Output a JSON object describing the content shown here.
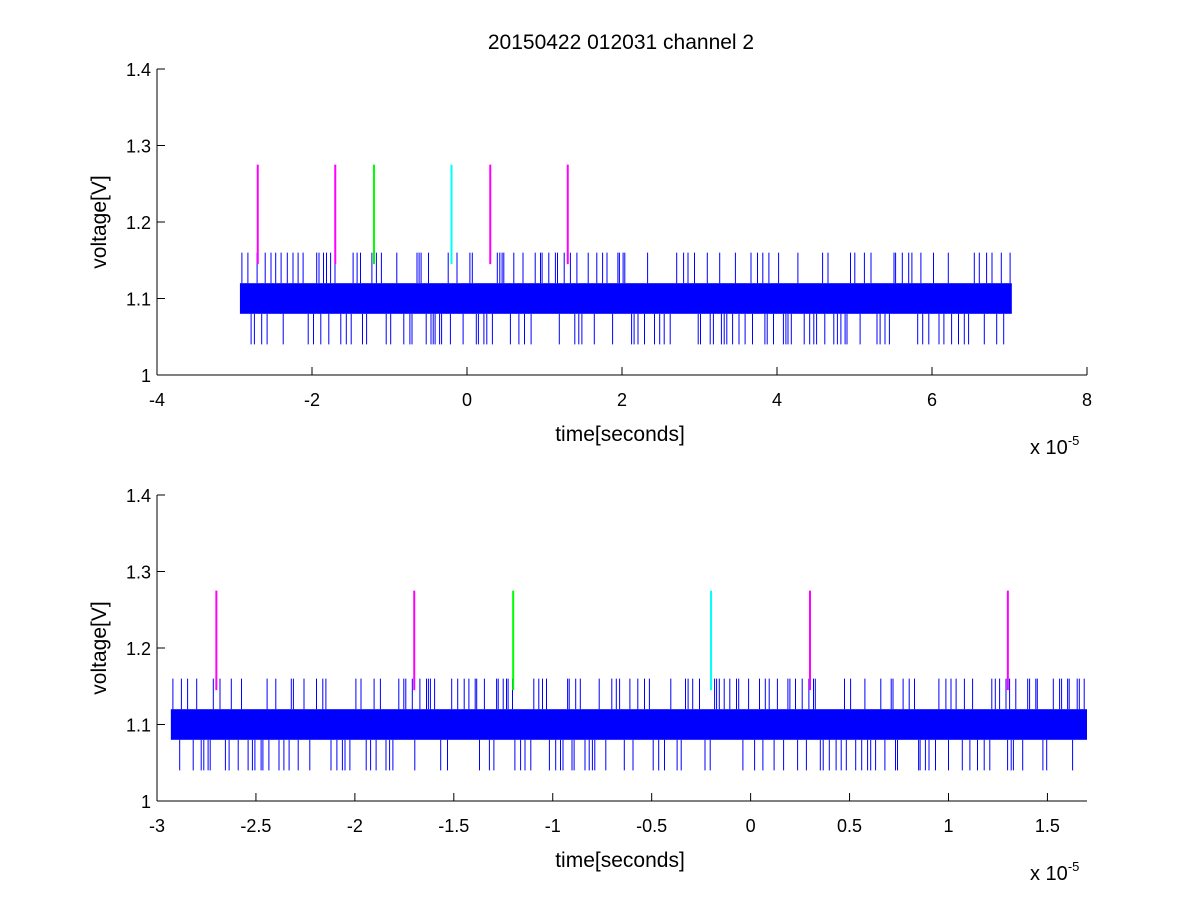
{
  "figure": {
    "title": "20150422 012031 channel 2"
  },
  "chart_data": [
    {
      "type": "line",
      "title": "20150422 012031 channel 2",
      "xlabel": "time[seconds]",
      "ylabel": "voltage[V]",
      "x_exponent_label": "x 10",
      "x_exponent_power": "-5",
      "x_scale": 1e-05,
      "xlim": [
        -4,
        8
      ],
      "ylim": [
        1.0,
        1.4
      ],
      "xticks": [
        -4,
        -2,
        0,
        2,
        4,
        6,
        8
      ],
      "xtick_labels": [
        "-4",
        "-2",
        "0",
        "2",
        "4",
        "6",
        "8"
      ],
      "yticks": [
        1.0,
        1.1,
        1.2,
        1.3,
        1.4
      ],
      "ytick_labels": [
        "1",
        "1.1",
        "1.2",
        "1.3",
        "1.4"
      ],
      "grid": false,
      "series": [
        {
          "kind": "signal",
          "color": "#0000ff",
          "x_range": [
            -2.93,
            7.03
          ],
          "band": [
            1.08,
            1.12
          ],
          "spike_high": 1.16,
          "spike_low": 1.04
        },
        {
          "kind": "markers",
          "y_range": [
            1.145,
            1.275
          ],
          "x": [
            -2.7,
            -1.7,
            -1.2,
            -0.2,
            0.3,
            1.3
          ],
          "colors": [
            "#ff00ff",
            "#ff00ff",
            "#00ff00",
            "#00ffff",
            "#ff00ff",
            "#ff00ff"
          ]
        }
      ]
    },
    {
      "type": "line",
      "title": "",
      "xlabel": "time[seconds]",
      "ylabel": "voltage[V]",
      "x_exponent_label": "x 10",
      "x_exponent_power": "-5",
      "x_scale": 1e-05,
      "xlim": [
        -3.0,
        1.7
      ],
      "ylim": [
        1.0,
        1.4
      ],
      "xticks": [
        -3,
        -2.5,
        -2,
        -1.5,
        -1,
        -0.5,
        0,
        0.5,
        1,
        1.5
      ],
      "xtick_labels": [
        "-3",
        "-2.5",
        "-2",
        "-1.5",
        "-1",
        "-0.5",
        "0",
        "0.5",
        "1",
        "1.5"
      ],
      "yticks": [
        1.0,
        1.1,
        1.2,
        1.3,
        1.4
      ],
      "ytick_labels": [
        "1",
        "1.1",
        "1.2",
        "1.3",
        "1.4"
      ],
      "grid": false,
      "series": [
        {
          "kind": "signal",
          "color": "#0000ff",
          "x_range": [
            -2.93,
            1.7
          ],
          "band": [
            1.08,
            1.12
          ],
          "spike_high": 1.16,
          "spike_low": 1.04
        },
        {
          "kind": "markers",
          "y_range": [
            1.145,
            1.275
          ],
          "x": [
            -2.7,
            -1.7,
            -1.2,
            -0.2,
            0.3,
            1.3
          ],
          "colors": [
            "#ff00ff",
            "#ff00ff",
            "#00ff00",
            "#00ffff",
            "#ff00ff",
            "#ff00ff"
          ]
        }
      ]
    }
  ]
}
